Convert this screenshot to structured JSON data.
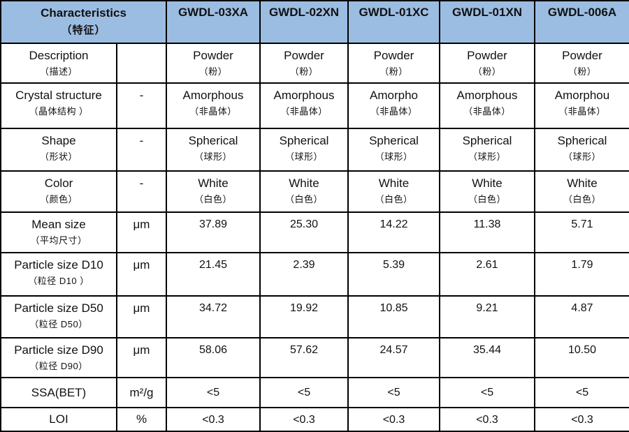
{
  "header": {
    "characteristics": {
      "en": "Characteristics",
      "zh": "（特征）"
    },
    "products": [
      "GWDL-03XA",
      "GWDL-02XN",
      "GWDL-01XC",
      "GWDL-01XN",
      "GWDL-006A"
    ]
  },
  "rows": [
    {
      "label": {
        "en": "Description",
        "zh": "（描述）"
      },
      "unit": "",
      "cells": [
        {
          "en": "Powder",
          "zh": "（粉）"
        },
        {
          "en": "Powder",
          "zh": "（粉）"
        },
        {
          "en": "Powder",
          "zh": "（粉）"
        },
        {
          "en": "Powder",
          "zh": "（粉）"
        },
        {
          "en": "Powder",
          "zh": "（粉）"
        }
      ]
    },
    {
      "label": {
        "en": "Crystal structure",
        "zh": "（晶体结构 ）"
      },
      "unit": "-",
      "cells": [
        {
          "en": "Amorphous",
          "zh": "（非晶体）"
        },
        {
          "en": "Amorphous",
          "zh": "（非晶体）"
        },
        {
          "en": "Amorpho",
          "zh": "（非晶体）"
        },
        {
          "en": "Amorphous",
          "zh": "（非晶体）"
        },
        {
          "en": "Amorphou",
          "zh": "（非晶体）"
        }
      ]
    },
    {
      "label": {
        "en": "Shape",
        "zh": "（形状）"
      },
      "unit": "-",
      "cells": [
        {
          "en": "Spherical",
          "zh": "（球形）"
        },
        {
          "en": "Spherical",
          "zh": "（球形）"
        },
        {
          "en": "Spherical",
          "zh": "（球形）"
        },
        {
          "en": "Spherical",
          "zh": "（球形）"
        },
        {
          "en": "Spherical",
          "zh": "（球形）"
        }
      ]
    },
    {
      "label": {
        "en": "Color",
        "zh": "（颜色）"
      },
      "unit": "-",
      "cells": [
        {
          "en": "White",
          "zh": "（白色）"
        },
        {
          "en": "White",
          "zh": "（白色）"
        },
        {
          "en": "White",
          "zh": "（白色）"
        },
        {
          "en": "White",
          "zh": "（白色）"
        },
        {
          "en": "White",
          "zh": "（白色）"
        }
      ]
    },
    {
      "label": {
        "en": "Mean size",
        "zh": "（平均尺寸）"
      },
      "unit": "μm",
      "cells": [
        {
          "en": "37.89",
          "zh": ""
        },
        {
          "en": "25.30",
          "zh": ""
        },
        {
          "en": "14.22",
          "zh": ""
        },
        {
          "en": "11.38",
          "zh": ""
        },
        {
          "en": "5.71",
          "zh": ""
        }
      ]
    },
    {
      "label": {
        "en": "Particle size D10",
        "zh": "（粒径 D10 ）"
      },
      "unit": "μm",
      "cells": [
        {
          "en": "21.45",
          "zh": ""
        },
        {
          "en": "2.39",
          "zh": ""
        },
        {
          "en": "5.39",
          "zh": ""
        },
        {
          "en": "2.61",
          "zh": ""
        },
        {
          "en": "1.79",
          "zh": ""
        }
      ]
    },
    {
      "label": {
        "en": "Particle size D50",
        "zh": "（粒径 D50）"
      },
      "unit": "μm",
      "cells": [
        {
          "en": "34.72",
          "zh": ""
        },
        {
          "en": "19.92",
          "zh": ""
        },
        {
          "en": "10.85",
          "zh": ""
        },
        {
          "en": "9.21",
          "zh": ""
        },
        {
          "en": "4.87",
          "zh": ""
        }
      ]
    },
    {
      "label": {
        "en": "Particle size D90",
        "zh": "（粒径 D90）"
      },
      "unit": "μm",
      "cells": [
        {
          "en": "58.06",
          "zh": ""
        },
        {
          "en": "57.62",
          "zh": ""
        },
        {
          "en": "24.57",
          "zh": ""
        },
        {
          "en": "35.44",
          "zh": ""
        },
        {
          "en": "10.50",
          "zh": ""
        }
      ]
    },
    {
      "label": {
        "en": "SSA(BET)",
        "zh": ""
      },
      "unit": "m²/g",
      "cells": [
        {
          "en": "<5",
          "zh": ""
        },
        {
          "en": "<5",
          "zh": ""
        },
        {
          "en": "<5",
          "zh": ""
        },
        {
          "en": "<5",
          "zh": ""
        },
        {
          "en": "<5",
          "zh": ""
        }
      ]
    },
    {
      "label": {
        "en": "LOI",
        "zh": ""
      },
      "unit": "%",
      "cells": [
        {
          "en": "<0.3",
          "zh": ""
        },
        {
          "en": "<0.3",
          "zh": ""
        },
        {
          "en": "<0.3",
          "zh": ""
        },
        {
          "en": "<0.3",
          "zh": ""
        },
        {
          "en": "<0.3",
          "zh": ""
        }
      ]
    }
  ],
  "colors": {
    "header_bg": "#9cbde2",
    "border": "#000000",
    "text": "#111111"
  }
}
